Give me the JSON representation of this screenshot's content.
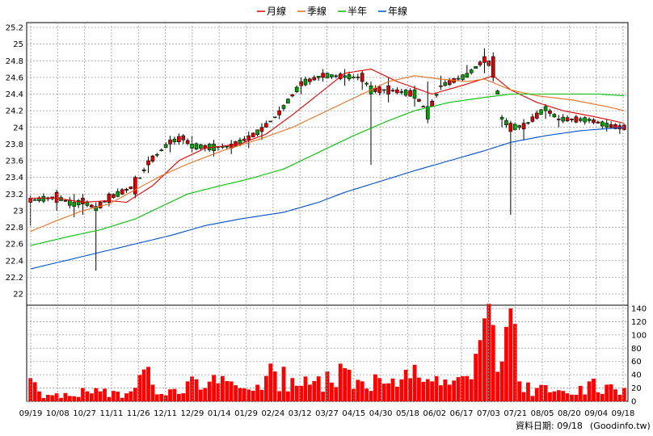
{
  "chart_data": {
    "type": "candlestick",
    "legend": [
      {
        "name": "月線",
        "color": "#e00000"
      },
      {
        "name": "季線",
        "color": "#e87020"
      },
      {
        "name": "半年",
        "color": "#00c000"
      },
      {
        "name": "年線",
        "color": "#0050c8"
      }
    ],
    "price_axis": {
      "min": 22.0,
      "max": 25.2,
      "ticks": [
        "22",
        "22.2",
        "22.4",
        "22.6",
        "22.8",
        "23",
        "23.2",
        "23.4",
        "23.6",
        "23.8",
        "24",
        "24.2",
        "24.4",
        "24.6",
        "24.8",
        "25",
        "25.2"
      ]
    },
    "volume_axis": {
      "min": 0,
      "max": 140,
      "ticks": [
        "0",
        "20",
        "40",
        "60",
        "80",
        "100",
        "120",
        "140"
      ]
    },
    "date_ticks": [
      "09/19",
      "10/08",
      "10/27",
      "11/11",
      "11/26",
      "12/11",
      "12/29",
      "01/14",
      "01/29",
      "02/24",
      "03/12",
      "03/27",
      "04/15",
      "04/30",
      "05/18",
      "06/02",
      "06/17",
      "07/03",
      "07/21",
      "08/05",
      "08/20",
      "09/04",
      "09/18"
    ],
    "candle_anchors": [
      [
        0,
        23.1,
        23.15,
        22.82,
        23.18
      ],
      [
        6,
        23.1,
        23.22,
        23.0,
        23.25
      ],
      [
        10,
        23.1,
        23.05,
        22.92,
        23.2
      ],
      [
        12,
        23.08,
        23.15,
        22.95,
        23.2
      ],
      [
        15,
        23.05,
        23.0,
        22.28,
        23.1
      ],
      [
        18,
        23.1,
        23.2,
        23.05,
        23.22
      ],
      [
        24,
        23.2,
        23.4,
        23.15,
        23.42
      ],
      [
        27,
        23.55,
        23.6,
        23.45,
        23.65
      ],
      [
        32,
        23.8,
        23.85,
        23.7,
        23.9
      ],
      [
        35,
        23.85,
        23.9,
        23.8,
        23.92
      ],
      [
        37,
        23.8,
        23.75,
        23.7,
        23.9
      ],
      [
        42,
        23.8,
        23.72,
        23.65,
        23.85
      ],
      [
        46,
        23.75,
        23.8,
        23.68,
        23.85
      ],
      [
        50,
        23.85,
        23.9,
        23.75,
        23.95
      ],
      [
        53,
        23.95,
        24.0,
        23.85,
        24.05
      ],
      [
        57,
        24.15,
        24.2,
        24.1,
        24.25
      ],
      [
        62,
        24.5,
        24.55,
        24.4,
        24.6
      ],
      [
        67,
        24.6,
        24.65,
        24.55,
        24.7
      ],
      [
        72,
        24.62,
        24.6,
        24.5,
        24.7
      ],
      [
        76,
        24.55,
        24.65,
        24.45,
        24.68
      ],
      [
        78,
        24.5,
        24.4,
        23.55,
        24.55
      ],
      [
        82,
        24.4,
        24.5,
        24.3,
        24.6
      ],
      [
        88,
        24.45,
        24.35,
        24.25,
        24.5
      ],
      [
        91,
        24.25,
        24.1,
        24.05,
        24.55
      ],
      [
        94,
        24.5,
        24.5,
        24.45,
        24.62
      ],
      [
        100,
        24.65,
        24.6,
        24.6,
        24.75
      ],
      [
        104,
        24.78,
        24.85,
        24.65,
        24.95
      ],
      [
        106,
        24.6,
        24.85,
        24.55,
        24.9
      ],
      [
        108,
        24.12,
        24.1,
        24.0,
        24.15
      ],
      [
        110,
        23.95,
        24.05,
        22.95,
        24.08
      ],
      [
        113,
        23.98,
        24.05,
        23.85,
        24.1
      ],
      [
        118,
        24.25,
        24.2,
        24.1,
        24.28
      ],
      [
        121,
        24.1,
        24.1,
        24.0,
        24.15
      ],
      [
        128,
        24.1,
        24.08,
        24.05,
        24.12
      ],
      [
        132,
        24.05,
        24.0,
        23.95,
        24.1
      ],
      [
        135,
        23.98,
        24.02,
        23.92,
        24.05
      ]
    ],
    "moving_averages": {
      "月線": [
        [
          0,
          23.15
        ],
        [
          6,
          23.15
        ],
        [
          12,
          23.1
        ],
        [
          18,
          23.12
        ],
        [
          22,
          23.1
        ],
        [
          28,
          23.3
        ],
        [
          34,
          23.6
        ],
        [
          40,
          23.75
        ],
        [
          48,
          23.8
        ],
        [
          54,
          23.92
        ],
        [
          60,
          24.15
        ],
        [
          66,
          24.4
        ],
        [
          72,
          24.65
        ],
        [
          78,
          24.7
        ],
        [
          84,
          24.55
        ],
        [
          92,
          24.4
        ],
        [
          100,
          24.52
        ],
        [
          106,
          24.62
        ],
        [
          110,
          24.45
        ],
        [
          116,
          24.3
        ],
        [
          122,
          24.2
        ],
        [
          130,
          24.12
        ],
        [
          136,
          24.05
        ]
      ],
      "季線": [
        [
          0,
          22.75
        ],
        [
          6,
          22.88
        ],
        [
          12,
          23.0
        ],
        [
          18,
          23.08
        ],
        [
          24,
          23.25
        ],
        [
          30,
          23.42
        ],
        [
          36,
          23.56
        ],
        [
          44,
          23.72
        ],
        [
          52,
          23.85
        ],
        [
          60,
          24.0
        ],
        [
          68,
          24.2
        ],
        [
          76,
          24.4
        ],
        [
          82,
          24.55
        ],
        [
          88,
          24.62
        ],
        [
          94,
          24.58
        ],
        [
          100,
          24.55
        ],
        [
          104,
          24.58
        ],
        [
          110,
          24.45
        ],
        [
          116,
          24.38
        ],
        [
          124,
          24.33
        ],
        [
          132,
          24.25
        ],
        [
          136,
          24.2
        ]
      ],
      "半年": [
        [
          0,
          22.58
        ],
        [
          8,
          22.68
        ],
        [
          16,
          22.77
        ],
        [
          24,
          22.9
        ],
        [
          30,
          23.05
        ],
        [
          36,
          23.2
        ],
        [
          42,
          23.28
        ],
        [
          50,
          23.38
        ],
        [
          58,
          23.5
        ],
        [
          66,
          23.7
        ],
        [
          74,
          23.9
        ],
        [
          82,
          24.08
        ],
        [
          88,
          24.2
        ],
        [
          96,
          24.3
        ],
        [
          104,
          24.36
        ],
        [
          110,
          24.4
        ],
        [
          120,
          24.4
        ],
        [
          130,
          24.4
        ],
        [
          136,
          24.38
        ]
      ],
      "年線": [
        [
          0,
          22.3
        ],
        [
          8,
          22.4
        ],
        [
          16,
          22.5
        ],
        [
          24,
          22.6
        ],
        [
          32,
          22.7
        ],
        [
          40,
          22.82
        ],
        [
          48,
          22.9
        ],
        [
          58,
          22.98
        ],
        [
          66,
          23.1
        ],
        [
          72,
          23.22
        ],
        [
          80,
          23.35
        ],
        [
          88,
          23.48
        ],
        [
          96,
          23.6
        ],
        [
          104,
          23.72
        ],
        [
          110,
          23.82
        ],
        [
          118,
          23.9
        ],
        [
          126,
          23.96
        ],
        [
          136,
          24.0
        ]
      ]
    },
    "volume_anchors": [
      [
        0,
        35
      ],
      [
        3,
        5
      ],
      [
        6,
        12
      ],
      [
        9,
        8
      ],
      [
        12,
        20
      ],
      [
        16,
        15
      ],
      [
        22,
        12
      ],
      [
        26,
        48
      ],
      [
        28,
        25
      ],
      [
        32,
        18
      ],
      [
        36,
        30
      ],
      [
        40,
        20
      ],
      [
        44,
        38
      ],
      [
        48,
        20
      ],
      [
        52,
        25
      ],
      [
        56,
        45
      ],
      [
        60,
        35
      ],
      [
        64,
        25
      ],
      [
        68,
        45
      ],
      [
        72,
        50
      ],
      [
        76,
        30
      ],
      [
        80,
        35
      ],
      [
        84,
        22
      ],
      [
        88,
        55
      ],
      [
        92,
        30
      ],
      [
        96,
        25
      ],
      [
        100,
        38
      ],
      [
        104,
        125
      ],
      [
        106,
        115
      ],
      [
        108,
        60
      ],
      [
        110,
        140
      ],
      [
        112,
        30
      ],
      [
        116,
        20
      ],
      [
        120,
        15
      ],
      [
        124,
        10
      ],
      [
        128,
        30
      ],
      [
        132,
        25
      ],
      [
        136,
        20
      ]
    ],
    "footer_text": "資料日期: 09/18",
    "source_text": "(Goodinfo.tw)"
  }
}
